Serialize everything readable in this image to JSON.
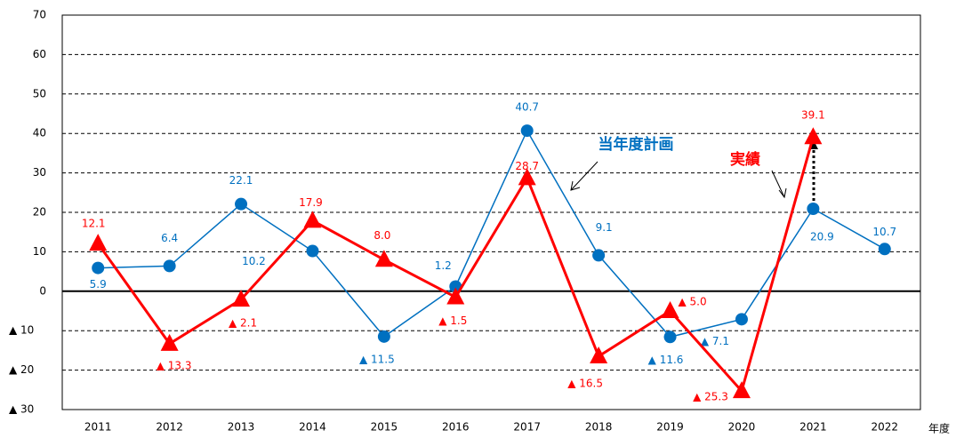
{
  "chart_data": {
    "type": "line",
    "categories": [
      "2011",
      "2012",
      "2013",
      "2014",
      "2015",
      "2016",
      "2017",
      "2018",
      "2019",
      "2020",
      "2021",
      "2022"
    ],
    "x_label": "年度",
    "series": [
      {
        "name": "当年度計画",
        "color": "#0070c0",
        "marker": "circle",
        "values": [
          5.9,
          6.4,
          22.1,
          10.2,
          -11.5,
          1.2,
          40.7,
          9.1,
          -11.6,
          -7.1,
          20.9,
          10.7
        ],
        "value_labels": [
          "5.9",
          "6.4",
          "22.1",
          "10.2",
          "▲ 11.5",
          "1.2",
          "40.7",
          "9.1",
          "▲ 11.6",
          "▲ 7.1",
          "20.9",
          "10.7"
        ]
      },
      {
        "name": "実績",
        "color": "#ff0000",
        "marker": "triangle",
        "values": [
          12.1,
          -13.3,
          -2.1,
          17.9,
          8.0,
          -1.5,
          28.7,
          -16.5,
          -5.0,
          -25.3,
          39.1,
          null
        ],
        "value_labels": [
          "12.1",
          "▲ 13.3",
          "▲ 2.1",
          "17.9",
          "8.0",
          "▲ 1.5",
          "28.7",
          "▲ 16.5",
          "▲ 5.0",
          "▲ 25.3",
          "39.1",
          null
        ]
      }
    ],
    "ylim": [
      -30,
      70
    ],
    "yticks": [
      {
        "value": -30,
        "label": "▲ 30"
      },
      {
        "value": -20,
        "label": "▲ 20"
      },
      {
        "value": -10,
        "label": "▲ 10"
      },
      0,
      10,
      20,
      30,
      40,
      50,
      60,
      70
    ],
    "grid": true
  }
}
